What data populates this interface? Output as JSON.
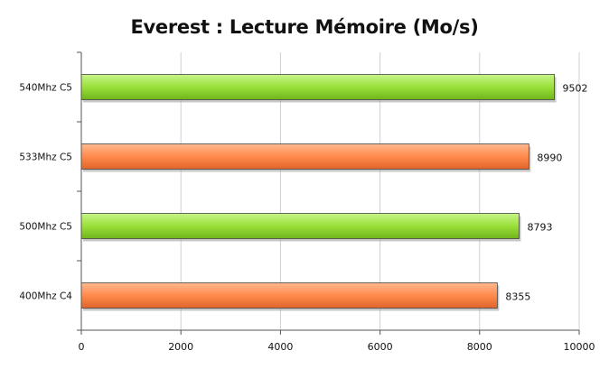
{
  "chart_data": {
    "type": "bar",
    "orientation": "horizontal",
    "title": "Everest : Lecture Mémoire (Mo/s)",
    "categories": [
      "540Mhz C5",
      "533Mhz C5",
      "500Mhz C5",
      "400Mhz C4"
    ],
    "values": [
      9502,
      8990,
      8793,
      8355
    ],
    "data_labels": [
      "9502",
      "8990",
      "8793",
      "8355"
    ],
    "bar_colors": [
      "#99e03a",
      "#ff8a4c",
      "#99e03a",
      "#ff8a4c"
    ],
    "xlim": [
      0,
      10000
    ],
    "x_ticks": [
      0,
      2000,
      4000,
      6000,
      8000,
      10000
    ],
    "x_tick_labels": [
      "0",
      "2000",
      "4000",
      "6000",
      "8000",
      "10000"
    ],
    "grid": "vertical",
    "legend": "none",
    "xlabel": "",
    "ylabel": ""
  }
}
